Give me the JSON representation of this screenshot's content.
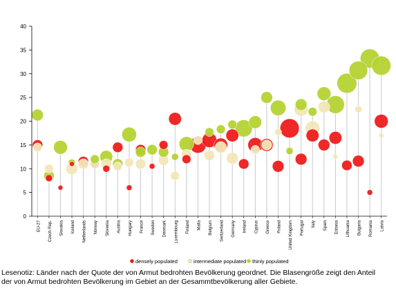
{
  "chart_data": {
    "type": "scatter",
    "subtype": "bubble",
    "title": "",
    "xlabel": "",
    "ylabel": "",
    "ylim": [
      0,
      40
    ],
    "yticks": [
      0,
      5,
      10,
      15,
      20,
      25,
      30,
      35,
      40
    ],
    "grid": false,
    "legend_position": "bottom",
    "categories": [
      "EU-27",
      "Czech Rep.",
      "Slovakia",
      "Iceland",
      "Netherlands",
      "Norway",
      "Slovenia",
      "Austria",
      "Hungary",
      "France",
      "Sweden",
      "Denmark",
      "Luxembourg",
      "Finland",
      "Malta",
      "Belgium",
      "Switzerland",
      "Germany",
      "Ireland",
      "Cyprus",
      "Greece",
      "Poland",
      "United Kingdom",
      "Portugal",
      "Italy",
      "Spain",
      "Estonia",
      "Lithuania",
      "Bulgaria",
      "Romania",
      "Latvia"
    ],
    "series": [
      {
        "name": "densely populated",
        "color": "#ee1c1c",
        "values": [
          15,
          8,
          6,
          11,
          11.5,
          11,
          10,
          14.5,
          6,
          14,
          10.5,
          15,
          20.5,
          12,
          15,
          16,
          15,
          17,
          11,
          15,
          15,
          10.5,
          18.5,
          12,
          17,
          15,
          16.5,
          10.7,
          11.6,
          5,
          20
        ],
        "sizes": [
          3,
          1,
          0.3,
          0.3,
          3,
          2,
          1,
          3,
          0.5,
          3,
          0.5,
          2,
          5,
          2,
          9,
          7,
          6,
          5,
          3,
          7,
          5,
          4,
          13,
          4,
          5,
          4,
          5,
          3,
          4,
          0.5,
          6
        ]
      },
      {
        "name": "intermediate populated",
        "color": "#f2e6b8",
        "values": [
          14.5,
          10,
          null,
          10,
          11,
          11,
          11,
          10.5,
          11.3,
          11,
          10.7,
          11.8,
          8.5,
          13,
          16,
          12.8,
          14.5,
          12.2,
          null,
          14,
          15,
          17.7,
          14,
          22.5,
          18.5,
          23,
          12.5,
          null,
          22.5,
          null,
          17
        ],
        "sizes": [
          2,
          2,
          0,
          4,
          3,
          2,
          3,
          2,
          2,
          3,
          1,
          3,
          2,
          3,
          2,
          3,
          4,
          4,
          0,
          2,
          3,
          1,
          1,
          6,
          7,
          4,
          0.3,
          0,
          1,
          0,
          0.3
        ]
      },
      {
        "name": "thinly populated",
        "color": "#b5d334",
        "values": [
          21.3,
          8.5,
          14.5,
          11.3,
          null,
          12,
          12.5,
          11,
          17.2,
          13.5,
          14,
          13.5,
          12.5,
          15.2,
          null,
          17.7,
          18.3,
          19.3,
          18.5,
          19.8,
          25,
          22.8,
          13.7,
          23.5,
          22,
          25.8,
          23.5,
          28,
          30.7,
          33.2,
          31.7
        ],
        "sizes": [
          4,
          3,
          6,
          1,
          0,
          2,
          5,
          3,
          7,
          3,
          3,
          3,
          1,
          7,
          0,
          2,
          2,
          2,
          10,
          5,
          4,
          8,
          1,
          4,
          2,
          6,
          11,
          14,
          12,
          13,
          13
        ]
      }
    ]
  },
  "legend": {
    "densely": "densely populated",
    "intermediate": "intermediate populated",
    "thinly": "thinly populated"
  },
  "caption": {
    "line1": "Lesenotiz: Länder nach der Quote der von Armut bedrohten Bevölkerung geordnet. Die Blasengröße zeigt den Anteil",
    "line2": "der von Armut bedrohten Bevölkerung im Gebiet an der Gesammtbevölkerung aller Gebiete."
  }
}
